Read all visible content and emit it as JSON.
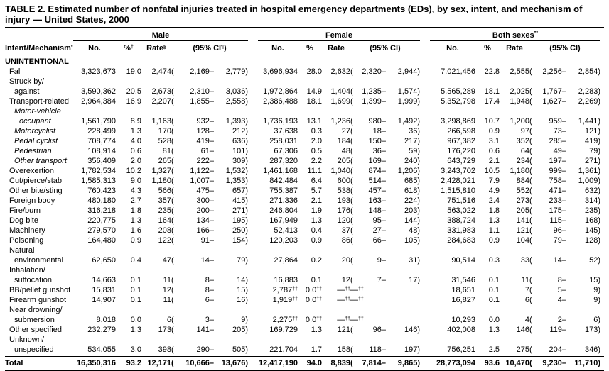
{
  "title": "TABLE 2. Estimated number of nonfatal injuries treated in hospital emergency departments (EDs), by sex, intent, and mechanism of injury — United States, 2000",
  "header": {
    "intent_col": "Intent/Mechanism*",
    "groups": [
      {
        "label": "Male",
        "cols": [
          "No.",
          "%†",
          "Rate§",
          "(95% CI¶)"
        ]
      },
      {
        "label": "Female",
        "cols": [
          "No.",
          "%",
          "Rate",
          "(95% CI)"
        ]
      },
      {
        "label": "Both sexes**",
        "cols": [
          "No.",
          "%",
          "Rate",
          "(95% CI)"
        ]
      }
    ]
  },
  "lines": [
    {
      "label": "UNINTENTIONAL",
      "indent": 0,
      "style": "section"
    },
    {
      "label": "Fall",
      "indent": 1,
      "m": [
        "3,323,673",
        "19.0",
        "2,474",
        "2,169",
        "2,779"
      ],
      "f": [
        "3,696,934",
        "28.0",
        "2,632",
        "2,320",
        "2,944"
      ],
      "b": [
        "7,021,456",
        "22.8",
        "2,555",
        "2,256",
        "2,854"
      ]
    },
    {
      "label": "Struck by/",
      "indent": 1
    },
    {
      "label": "against",
      "indent": 2,
      "m": [
        "3,590,362",
        "20.5",
        "2,673",
        "2,310",
        "3,036"
      ],
      "f": [
        "1,972,864",
        "14.9",
        "1,404",
        "1,235",
        "1,574"
      ],
      "b": [
        "5,565,289",
        "18.1",
        "2,025",
        "1,767",
        "2,283"
      ]
    },
    {
      "label": "Transport-related",
      "indent": 1,
      "m": [
        "2,964,384",
        "16.9",
        "2,207",
        "1,855",
        "2,558"
      ],
      "f": [
        "2,386,488",
        "18.1",
        "1,699",
        "1,399",
        "1,999"
      ],
      "b": [
        "5,352,798",
        "17.4",
        "1,948",
        "1,627",
        "2,269"
      ]
    },
    {
      "label": "Motor-vehicle",
      "indent": 2,
      "italic": true
    },
    {
      "label": "occupant",
      "indent": 3,
      "italic": true,
      "m": [
        "1,561,790",
        "8.9",
        "1,163",
        "932",
        "1,393"
      ],
      "f": [
        "1,736,193",
        "13.1",
        "1,236",
        "980",
        "1,492"
      ],
      "b": [
        "3,298,869",
        "10.7",
        "1,200",
        "959",
        "1,441"
      ]
    },
    {
      "label": "Motorcyclist",
      "indent": 2,
      "italic": true,
      "m": [
        "228,499",
        "1.3",
        "170",
        "128",
        "212"
      ],
      "f": [
        "37,638",
        "0.3",
        "27",
        "18",
        "36"
      ],
      "b": [
        "266,598",
        "0.9",
        "97",
        "73",
        "121"
      ]
    },
    {
      "label": "Pedal cyclist",
      "indent": 2,
      "italic": true,
      "m": [
        "708,774",
        "4.0",
        "528",
        "419",
        "636"
      ],
      "f": [
        "258,031",
        "2.0",
        "184",
        "150",
        "217"
      ],
      "b": [
        "967,382",
        "3.1",
        "352",
        "285",
        "419"
      ]
    },
    {
      "label": "Pedestrian",
      "indent": 2,
      "italic": true,
      "m": [
        "108,914",
        "0.6",
        "81",
        "61",
        "101"
      ],
      "f": [
        "67,306",
        "0.5",
        "48",
        "36",
        "59"
      ],
      "b": [
        "176,220",
        "0.6",
        "64",
        "49",
        "79"
      ]
    },
    {
      "label": "Other transport",
      "indent": 2,
      "italic": true,
      "m": [
        "356,409",
        "2.0",
        "265",
        "222",
        "309"
      ],
      "f": [
        "287,320",
        "2.2",
        "205",
        "169",
        "240"
      ],
      "b": [
        "643,729",
        "2.1",
        "234",
        "197",
        "271"
      ]
    },
    {
      "label": "Overexertion",
      "indent": 1,
      "m": [
        "1,782,534",
        "10.2",
        "1,327",
        "1,122",
        "1,532"
      ],
      "f": [
        "1,461,168",
        "11.1",
        "1,040",
        "874",
        "1,206"
      ],
      "b": [
        "3,243,702",
        "10.5",
        "1,180",
        "999",
        "1,361"
      ]
    },
    {
      "label": "Cut/pierce/stab",
      "indent": 1,
      "m": [
        "1,585,313",
        "9.0",
        "1,180",
        "1,007",
        "1,353"
      ],
      "f": [
        "842,484",
        "6.4",
        "600",
        "514",
        "685"
      ],
      "b": [
        "2,428,021",
        "7.9",
        "884",
        "758",
        "1,009"
      ]
    },
    {
      "label": "Other bite/sting",
      "indent": 1,
      "m": [
        "760,423",
        "4.3",
        "566",
        "475",
        "657"
      ],
      "f": [
        "755,387",
        "5.7",
        "538",
        "457",
        "618"
      ],
      "b": [
        "1,515,810",
        "4.9",
        "552",
        "471",
        "632"
      ]
    },
    {
      "label": "Foreign body",
      "indent": 1,
      "m": [
        "480,180",
        "2.7",
        "357",
        "300",
        "415"
      ],
      "f": [
        "271,336",
        "2.1",
        "193",
        "163",
        "224"
      ],
      "b": [
        "751,516",
        "2.4",
        "273",
        "233",
        "314"
      ]
    },
    {
      "label": "Fire/burn",
      "indent": 1,
      "m": [
        "316,218",
        "1.8",
        "235",
        "200",
        "271"
      ],
      "f": [
        "246,804",
        "1.9",
        "176",
        "148",
        "203"
      ],
      "b": [
        "563,022",
        "1.8",
        "205",
        "175",
        "235"
      ]
    },
    {
      "label": "Dog bite",
      "indent": 1,
      "m": [
        "220,775",
        "1.3",
        "164",
        "134",
        "195"
      ],
      "f": [
        "167,949",
        "1.3",
        "120",
        "95",
        "144"
      ],
      "b": [
        "388,724",
        "1.3",
        "141",
        "115",
        "168"
      ]
    },
    {
      "label": "Machinery",
      "indent": 1,
      "m": [
        "279,570",
        "1.6",
        "208",
        "166",
        "250"
      ],
      "f": [
        "52,413",
        "0.4",
        "37",
        "27",
        "48"
      ],
      "b": [
        "331,983",
        "1.1",
        "121",
        "96",
        "145"
      ]
    },
    {
      "label": "Poisoning",
      "indent": 1,
      "m": [
        "164,480",
        "0.9",
        "122",
        "91",
        "154"
      ],
      "f": [
        "120,203",
        "0.9",
        "86",
        "66",
        "105"
      ],
      "b": [
        "284,683",
        "0.9",
        "104",
        "79",
        "128"
      ]
    },
    {
      "label": "Natural",
      "indent": 1
    },
    {
      "label": "environmental",
      "indent": 2,
      "m": [
        "62,650",
        "0.4",
        "47",
        "14",
        "79"
      ],
      "f": [
        "27,864",
        "0.2",
        "20",
        "9",
        "31"
      ],
      "b": [
        "90,514",
        "0.3",
        "33",
        "14",
        "52"
      ]
    },
    {
      "label": "Inhalation/",
      "indent": 1
    },
    {
      "label": "suffocation",
      "indent": 2,
      "m": [
        "14,663",
        "0.1",
        "11",
        "8",
        "14"
      ],
      "f": [
        "16,883",
        "0.1",
        "12",
        "7",
        "17"
      ],
      "b": [
        "31,546",
        "0.1",
        "11",
        "8",
        "15"
      ]
    },
    {
      "label": "BB/pellet gunshot",
      "indent": 1,
      "m": [
        "15,831",
        "0.1",
        "12",
        "8",
        "15"
      ],
      "f": [
        "2,787††",
        "0.0††",
        "—††",
        "—††",
        ""
      ],
      "b": [
        "18,651",
        "0.1",
        "7",
        "5",
        "9"
      ]
    },
    {
      "label": "Firearm gunshot",
      "indent": 1,
      "m": [
        "14,907",
        "0.1",
        "11",
        "6",
        "16"
      ],
      "f": [
        "1,919††",
        "0.0††",
        "—††",
        "—††",
        ""
      ],
      "b": [
        "16,827",
        "0.1",
        "6",
        "4",
        "9"
      ]
    },
    {
      "label": "Near drowning/",
      "indent": 1
    },
    {
      "label": "submersion",
      "indent": 2,
      "m": [
        "8,018",
        "0.0",
        "6",
        "3",
        "9"
      ],
      "f": [
        "2,275††",
        "0.0††",
        "—††",
        "—††",
        ""
      ],
      "b": [
        "10,293",
        "0.0",
        "4",
        "2",
        "6"
      ]
    },
    {
      "label": "Other specified",
      "indent": 1,
      "m": [
        "232,279",
        "1.3",
        "173",
        "141",
        "205"
      ],
      "f": [
        "169,729",
        "1.3",
        "121",
        "96",
        "146"
      ],
      "b": [
        "402,008",
        "1.3",
        "146",
        "119",
        "173"
      ]
    },
    {
      "label": "Unknown/",
      "indent": 1
    },
    {
      "label": "unspecified",
      "indent": 2,
      "m": [
        "534,055",
        "3.0",
        "398",
        "290",
        "505"
      ],
      "f": [
        "221,704",
        "1.7",
        "158",
        "118",
        "197"
      ],
      "b": [
        "756,251",
        "2.5",
        "275",
        "204",
        "346"
      ]
    },
    {
      "label": "Total",
      "indent": 0,
      "style": "total",
      "m": [
        "16,350,316",
        "93.2",
        "12,171",
        "10,666",
        "13,676"
      ],
      "f": [
        "12,417,190",
        "94.0",
        "8,839",
        "7,814",
        "9,865"
      ],
      "b": [
        "28,773,094",
        "93.6",
        "10,470",
        "9,230",
        "11,710"
      ]
    }
  ]
}
